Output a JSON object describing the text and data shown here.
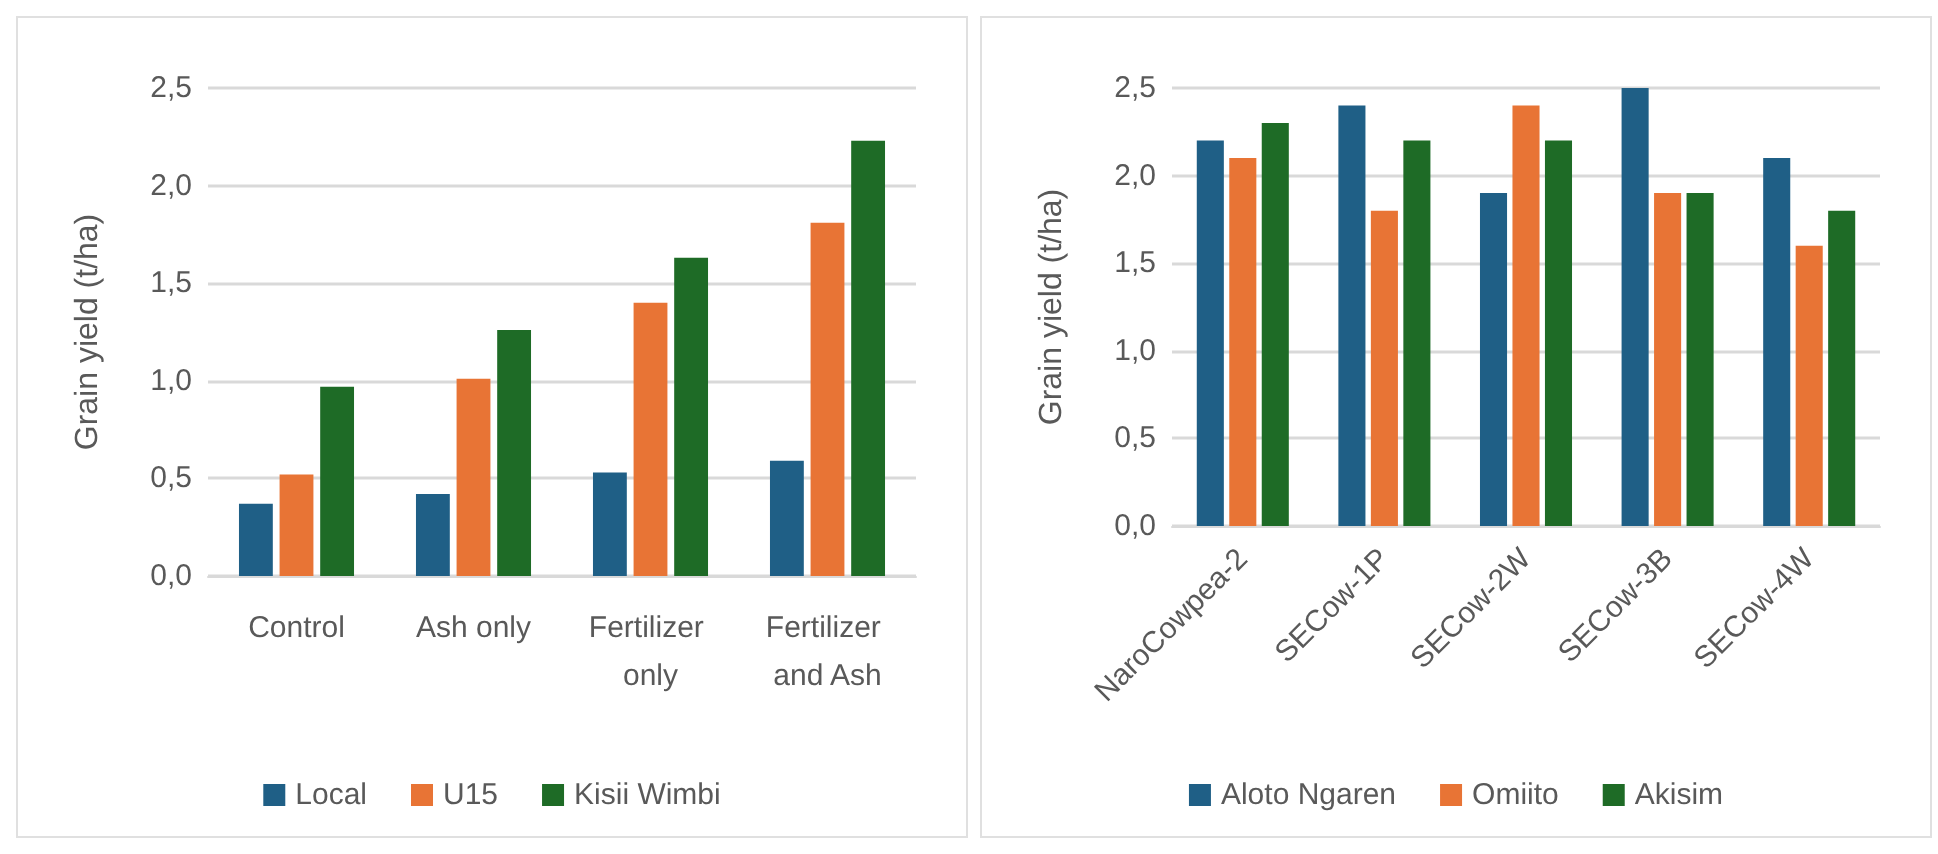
{
  "chart_data": [
    {
      "type": "bar",
      "ylabel": "Grain yield (t/ha)",
      "categories": [
        "Control",
        "Ash only",
        "Fertilizer only",
        "Fertilizer and Ash"
      ],
      "series": [
        {
          "name": "Local",
          "color": "#1f5f86",
          "values": [
            0.37,
            0.42,
            0.53,
            0.59
          ]
        },
        {
          "name": "U15",
          "color": "#e87435",
          "values": [
            0.52,
            1.01,
            1.4,
            1.81
          ]
        },
        {
          "name": "Kisii Wimbi",
          "color": "#1e6b26",
          "values": [
            0.97,
            1.26,
            1.63,
            2.23
          ]
        }
      ],
      "ylim": [
        0,
        2.5
      ],
      "yticks": [
        {
          "value": 0,
          "label": "0,0"
        },
        {
          "value": 0.5,
          "label": "0,5"
        },
        {
          "value": 1,
          "label": "1,0"
        },
        {
          "value": 1.5,
          "label": "1,5"
        },
        {
          "value": 2,
          "label": "2,0"
        },
        {
          "value": 2.5,
          "label": "2,5"
        }
      ],
      "grid": "y",
      "legend": "bottom"
    },
    {
      "type": "bar",
      "ylabel": "Grain yield (t/ha)",
      "categories": [
        "NaroCowpea-2",
        "SECow-1P",
        "SECow-2W",
        "SECow-3B",
        "SECow-4W"
      ],
      "series": [
        {
          "name": "Aloto Ngaren",
          "color": "#1f5f86",
          "values": [
            2.2,
            2.4,
            1.9,
            2.5,
            2.1
          ]
        },
        {
          "name": "Omiito",
          "color": "#e87435",
          "values": [
            2.1,
            1.8,
            2.4,
            1.9,
            1.6
          ]
        },
        {
          "name": "Akisim",
          "color": "#1e6b26",
          "values": [
            2.3,
            2.2,
            2.2,
            1.9,
            1.8
          ]
        }
      ],
      "ylim": [
        0,
        2.5
      ],
      "yticks": [
        {
          "value": 0,
          "label": "0,0"
        },
        {
          "value": 0.5,
          "label": "0,5"
        },
        {
          "value": 1,
          "label": "1,0"
        },
        {
          "value": 1.5,
          "label": "1,5"
        },
        {
          "value": 2,
          "label": "2,0"
        },
        {
          "value": 2.5,
          "label": "2,5"
        }
      ],
      "grid": "y",
      "legend": "bottom"
    }
  ]
}
